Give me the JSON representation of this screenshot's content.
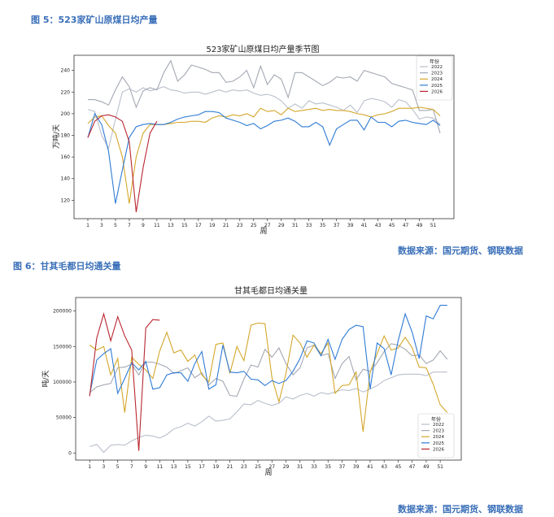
{
  "figures": [
    {
      "caption": "图 5：523家矿山原煤日均产量",
      "source": "数据来源：国元期货、钢联数据"
    },
    {
      "caption": "图 6：甘其毛都日均通关量",
      "source": "数据来源：国元期货、钢联数据"
    }
  ],
  "series_colors": {
    "2022": "#b9bfcc",
    "2023": "#a3a8b3",
    "2024": "#d4a72c",
    "2025": "#2f7bd6",
    "2026": "#b8272f"
  },
  "chart_data": [
    {
      "type": "line",
      "title": "523家矿山原煤日均产量季节图",
      "xlabel": "周",
      "ylabel": "万吨/天",
      "xticks": [
        1,
        3,
        5,
        7,
        9,
        11,
        13,
        15,
        17,
        19,
        21,
        23,
        25,
        27,
        29,
        31,
        33,
        35,
        37,
        39,
        41,
        43,
        45,
        47,
        49,
        51
      ],
      "yticks": [
        120,
        140,
        160,
        180,
        200,
        220,
        240
      ],
      "xlim": [
        -1,
        54
      ],
      "ylim": [
        103,
        254
      ],
      "legend_title": "年份",
      "legend_position": "upper right",
      "series": [
        {
          "name": "2022",
          "x": [
            1,
            2,
            3,
            4,
            5,
            6,
            7,
            8,
            9,
            10,
            11,
            12,
            13,
            14,
            15,
            16,
            17,
            18,
            19,
            20,
            21,
            22,
            23,
            24,
            25,
            26,
            27,
            28,
            29,
            30,
            31,
            32,
            33,
            34,
            35,
            36,
            37,
            38,
            39,
            40,
            41,
            42,
            43,
            44,
            45,
            46,
            47,
            48,
            49,
            50,
            51,
            52
          ],
          "values": [
            204,
            202,
            180,
            168,
            195,
            220,
            223,
            220,
            224,
            221,
            223,
            225,
            222,
            221,
            219,
            220,
            220,
            218,
            220,
            222,
            220,
            222,
            221,
            222,
            219,
            217,
            218,
            216,
            212,
            205,
            209,
            205,
            212,
            209,
            210,
            208,
            206,
            203,
            208,
            201,
            212,
            214,
            213,
            211,
            206,
            213,
            211,
            204,
            195,
            197,
            196,
            190
          ]
        },
        {
          "name": "2023",
          "x": [
            1,
            2,
            3,
            4,
            5,
            6,
            7,
            8,
            9,
            10,
            11,
            12,
            13,
            14,
            15,
            16,
            17,
            18,
            19,
            20,
            21,
            22,
            23,
            24,
            25,
            26,
            27,
            28,
            29,
            30,
            31,
            32,
            33,
            34,
            35,
            36,
            37,
            38,
            39,
            40,
            41,
            42,
            43,
            44,
            45,
            46,
            47,
            48,
            49,
            50,
            51,
            52
          ],
          "values": [
            213,
            213,
            211,
            208,
            222,
            234,
            225,
            206,
            221,
            224,
            222,
            238,
            249,
            230,
            236,
            245,
            243,
            241,
            238,
            238,
            229,
            230,
            234,
            240,
            224,
            244,
            227,
            236,
            232,
            215,
            238,
            238,
            234,
            230,
            226,
            229,
            234,
            233,
            234,
            230,
            240,
            238,
            236,
            234,
            228,
            226,
            224,
            222,
            203,
            203,
            204,
            182
          ]
        },
        {
          "name": "2024",
          "x": [
            1,
            2,
            3,
            4,
            5,
            6,
            7,
            8,
            9,
            10,
            11,
            12,
            13,
            14,
            15,
            16,
            17,
            18,
            19,
            20,
            21,
            22,
            23,
            24,
            25,
            26,
            27,
            28,
            29,
            30,
            31,
            32,
            33,
            34,
            35,
            36,
            37,
            38,
            39,
            40,
            41,
            42,
            43,
            44,
            45,
            46,
            47,
            48,
            49,
            50,
            51,
            52
          ],
          "values": [
            191,
            197,
            198,
            189,
            182,
            160,
            117,
            160,
            182,
            190,
            190,
            190,
            191,
            192,
            192,
            193,
            193,
            192,
            196,
            198,
            197,
            199,
            198,
            200,
            197,
            205,
            202,
            203,
            199,
            205,
            202,
            203,
            204,
            205,
            203,
            204,
            203,
            203,
            202,
            200,
            199,
            197,
            199,
            200,
            202,
            205,
            205,
            205,
            206,
            205,
            204,
            198
          ]
        },
        {
          "name": "2025",
          "x": [
            1,
            2,
            3,
            4,
            5,
            6,
            7,
            8,
            9,
            10,
            11,
            12,
            13,
            14,
            15,
            16,
            17,
            18,
            19,
            20,
            21,
            22,
            23,
            24,
            25,
            26,
            27,
            28,
            29,
            30,
            31,
            32,
            33,
            34,
            35,
            36,
            37,
            38,
            39,
            40,
            41,
            42,
            43,
            44,
            45,
            46,
            47,
            48,
            49,
            50,
            51,
            52
          ],
          "values": [
            178,
            200,
            190,
            165,
            117,
            148,
            178,
            188,
            190,
            191,
            190,
            190,
            192,
            195,
            197,
            198,
            199,
            202,
            202,
            201,
            196,
            194,
            192,
            189,
            191,
            186,
            189,
            193,
            194,
            196,
            193,
            188,
            188,
            192,
            188,
            171,
            186,
            190,
            194,
            194,
            185,
            197,
            192,
            192,
            188,
            193,
            194,
            192,
            191,
            190,
            194,
            189
          ]
        },
        {
          "name": "2026",
          "x": [
            1,
            2,
            3,
            4,
            5,
            6,
            7,
            8,
            9,
            10,
            11
          ],
          "values": [
            178,
            193,
            198,
            199,
            197,
            193,
            174,
            109,
            150,
            182,
            193
          ]
        }
      ]
    },
    {
      "type": "line",
      "title": "甘其毛都日均通关量",
      "xlabel": "周",
      "ylabel": "吨/天",
      "xticks": [
        1,
        3,
        5,
        7,
        9,
        11,
        13,
        15,
        17,
        19,
        21,
        23,
        25,
        27,
        29,
        31,
        33,
        35,
        37,
        39,
        41,
        43,
        45,
        47,
        49,
        51
      ],
      "yticks": [
        0,
        50000,
        100000,
        150000,
        200000
      ],
      "ytick_labels": [
        "0",
        "50000",
        "100000",
        "150000",
        "200000"
      ],
      "xlim": [
        -1,
        54
      ],
      "ylim": [
        -10000,
        219000
      ],
      "legend_title": "年份",
      "legend_position": "lower right",
      "series": [
        {
          "name": "2022",
          "x": [
            1,
            2,
            3,
            4,
            5,
            6,
            7,
            8,
            9,
            10,
            11,
            12,
            13,
            14,
            15,
            16,
            17,
            18,
            19,
            20,
            21,
            22,
            23,
            24,
            25,
            26,
            27,
            28,
            29,
            30,
            31,
            32,
            33,
            34,
            35,
            36,
            37,
            38,
            39,
            40,
            41,
            42,
            43,
            44,
            45,
            46,
            47,
            48,
            49,
            50,
            51,
            52
          ],
          "values": [
            9000,
            12000,
            1000,
            11000,
            12000,
            11000,
            17000,
            22000,
            25000,
            24000,
            21000,
            26000,
            34000,
            37000,
            42000,
            38000,
            44000,
            52000,
            45000,
            46000,
            48000,
            58000,
            69000,
            68000,
            74000,
            70000,
            67000,
            70000,
            79000,
            76000,
            81000,
            84000,
            80000,
            85000,
            83000,
            86000,
            89000,
            88000,
            91000,
            86000,
            90000,
            95000,
            102000,
            106000,
            110000,
            111000,
            111000,
            111000,
            109000,
            114000,
            114000,
            114000
          ]
        },
        {
          "name": "2023",
          "x": [
            1,
            2,
            3,
            4,
            5,
            6,
            7,
            8,
            9,
            10,
            11,
            12,
            13,
            14,
            15,
            16,
            17,
            18,
            19,
            20,
            21,
            22,
            23,
            24,
            25,
            26,
            27,
            28,
            29,
            30,
            31,
            32,
            33,
            34,
            35,
            36,
            37,
            38,
            39,
            40,
            41,
            42,
            43,
            44,
            45,
            46,
            47,
            48,
            49,
            50,
            51,
            52
          ],
          "values": [
            85000,
            93000,
            96000,
            98000,
            120000,
            121000,
            125000,
            110000,
            128000,
            128000,
            125000,
            121000,
            112000,
            116000,
            120000,
            106000,
            113000,
            96000,
            105000,
            101000,
            81000,
            80000,
            104000,
            124000,
            121000,
            146000,
            135000,
            148000,
            126000,
            110000,
            120000,
            148000,
            152000,
            137000,
            140000,
            105000,
            126000,
            136000,
            103000,
            118000,
            115000,
            127000,
            143000,
            154000,
            152000,
            146000,
            137000,
            138000,
            126000,
            131000,
            144000,
            132000
          ]
        },
        {
          "name": "2024",
          "x": [
            1,
            2,
            3,
            4,
            5,
            6,
            7,
            8,
            9,
            10,
            11,
            12,
            13,
            14,
            15,
            16,
            17,
            18,
            19,
            20,
            21,
            22,
            23,
            24,
            25,
            26,
            27,
            28,
            29,
            30,
            31,
            32,
            33,
            34,
            35,
            36,
            37,
            38,
            39,
            40,
            41,
            42,
            43,
            44,
            45,
            46,
            47,
            48,
            49,
            50,
            51,
            52
          ],
          "values": [
            152000,
            145000,
            150000,
            110000,
            133000,
            57000,
            135000,
            125000,
            117000,
            105000,
            144000,
            170000,
            141000,
            145000,
            129000,
            138000,
            110000,
            100000,
            153000,
            155000,
            112000,
            150000,
            130000,
            180000,
            183000,
            182000,
            106000,
            72000,
            112000,
            166000,
            155000,
            135000,
            152000,
            140000,
            155000,
            84000,
            95000,
            96000,
            114000,
            30000,
            114000,
            140000,
            165000,
            145000,
            148000,
            163000,
            148000,
            121000,
            120000,
            97000,
            68000,
            57000
          ]
        },
        {
          "name": "2025",
          "x": [
            1,
            2,
            3,
            4,
            5,
            6,
            7,
            8,
            9,
            10,
            11,
            12,
            13,
            14,
            15,
            16,
            17,
            18,
            19,
            20,
            21,
            22,
            23,
            24,
            25,
            26,
            27,
            28,
            29,
            30,
            31,
            32,
            33,
            34,
            35,
            36,
            37,
            38,
            39,
            40,
            41,
            42,
            43,
            44,
            45,
            46,
            47,
            48,
            49,
            50,
            51,
            52
          ],
          "values": [
            82000,
            131000,
            140000,
            147000,
            84000,
            105000,
            127000,
            117000,
            129000,
            90000,
            92000,
            110000,
            113000,
            113000,
            101000,
            126000,
            143000,
            90000,
            96000,
            152000,
            114000,
            113000,
            115000,
            104000,
            103000,
            95000,
            102000,
            98000,
            102000,
            115000,
            133000,
            158000,
            155000,
            137000,
            160000,
            132000,
            160000,
            174000,
            180000,
            178000,
            90000,
            155000,
            147000,
            110000,
            158000,
            196000,
            170000,
            133000,
            193000,
            189000,
            208000,
            208000
          ]
        },
        {
          "name": "2026",
          "x": [
            1,
            2,
            3,
            4,
            5,
            6,
            7,
            8,
            9,
            10,
            11
          ],
          "values": [
            80000,
            162000,
            196000,
            158000,
            192000,
            165000,
            145000,
            3000,
            176000,
            188000,
            187000
          ]
        }
      ]
    }
  ]
}
